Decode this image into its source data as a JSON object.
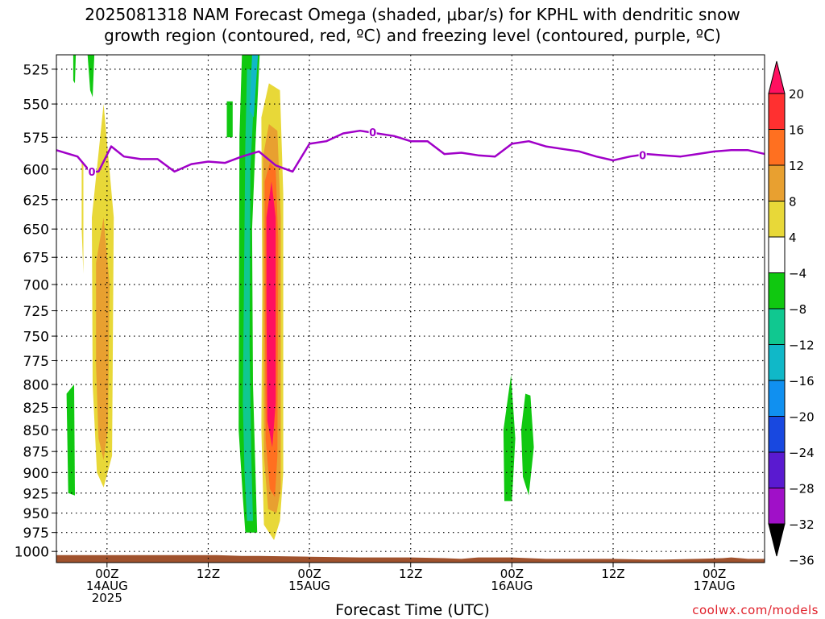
{
  "header": {
    "title_line1": "2025081318 NAM Forecast Omega (shaded, μbar/s) for KPHL with dendritic snow",
    "title_line2": "growth region (contoured, red, ºC) and freezing level (contoured, purple, ºC)"
  },
  "footer": {
    "xlabel": "Forecast Time (UTC)",
    "credit": "coolwx.com/models"
  },
  "colors": {
    "freezing_line": "#a000c8",
    "terrain": "#a0522d",
    "grid": "#000000"
  },
  "chart_data": {
    "type": "heatmap",
    "title": "2025081318 NAM Forecast Omega (shaded, μbar/s) for KPHL with dendritic snow growth region (contoured, red, ºC) and freezing level (contoured, purple, ºC)",
    "xlabel": "Forecast Time (UTC)",
    "ylabel": "",
    "y_scale": "pressure (hPa), increasing downward",
    "ylim": [
      1015,
      515
    ],
    "y_ticks": [
      525,
      550,
      575,
      600,
      625,
      650,
      675,
      700,
      725,
      750,
      775,
      800,
      825,
      850,
      875,
      900,
      925,
      950,
      975,
      1000
    ],
    "xlim": [
      "2025-08-13 18Z",
      "2025-08-17 09Z"
    ],
    "x_ticks": [
      {
        "time": "2025-08-14 00Z",
        "l1": "00Z",
        "l2": "14AUG",
        "l3": "2025"
      },
      {
        "time": "2025-08-14 12Z",
        "l1": "12Z",
        "l2": "",
        "l3": ""
      },
      {
        "time": "2025-08-15 00Z",
        "l1": "00Z",
        "l2": "15AUG",
        "l3": ""
      },
      {
        "time": "2025-08-15 12Z",
        "l1": "12Z",
        "l2": "",
        "l3": ""
      },
      {
        "time": "2025-08-16 00Z",
        "l1": "00Z",
        "l2": "16AUG",
        "l3": ""
      },
      {
        "time": "2025-08-16 12Z",
        "l1": "12Z",
        "l2": "",
        "l3": ""
      },
      {
        "time": "2025-08-17 00Z",
        "l1": "00Z",
        "l2": "17AUG",
        "l3": ""
      }
    ],
    "grid": true,
    "colorbar": {
      "levels": [
        "20",
        "16",
        "12",
        "8",
        "4",
        "−4",
        "−8",
        "−12",
        "−16",
        "−20",
        "−24",
        "−28",
        "−32",
        "−36"
      ],
      "colors": [
        "#ff1060",
        "#ff3030",
        "#ff7020",
        "#e8a030",
        "#e8d838",
        "#ffffff",
        "#10c810",
        "#10c890",
        "#10b8c8",
        "#1090f0",
        "#1848e0",
        "#5a1ad0",
        "#a010c8",
        "#a0a0a0",
        "#000000"
      ]
    },
    "freezing_level_0C": {
      "hours": [
        0,
        2.5,
        4,
        5,
        6.5,
        8,
        10,
        12,
        14,
        16,
        18,
        20,
        22,
        24,
        26,
        28,
        30,
        32,
        34,
        36,
        38,
        40,
        42,
        44,
        46,
        48,
        50,
        52,
        54,
        56,
        58,
        60,
        62,
        64,
        66,
        68,
        70,
        72,
        74,
        76,
        78,
        80,
        82,
        84,
        85
      ],
      "pressure": [
        585,
        590,
        602,
        602,
        582,
        590,
        592,
        592,
        602,
        596,
        594,
        595,
        590,
        586,
        597,
        602,
        580,
        578,
        572,
        570,
        572,
        574,
        578,
        578,
        588,
        587,
        589,
        590,
        580,
        578,
        582,
        584,
        586,
        590,
        593,
        590,
        588,
        589,
        590,
        588,
        586,
        585,
        585,
        588,
        588
      ],
      "label": "0"
    },
    "omega_regions": [
      {
        "color": "#10c810",
        "value_range": "-4 to -8",
        "polygon": [
          [
            1.2,
            810
          ],
          [
            2.1,
            800
          ],
          [
            2.2,
            928
          ],
          [
            1.4,
            925
          ]
        ]
      },
      {
        "color": "#e8d838",
        "value_range": "4 to 8",
        "polygon": [
          [
            4.2,
            640
          ],
          [
            5.6,
            550
          ],
          [
            6.8,
            640
          ],
          [
            6.6,
            880
          ],
          [
            5.6,
            918
          ],
          [
            4.8,
            900
          ],
          [
            4.3,
            800
          ]
        ]
      },
      {
        "color": "#e8a030",
        "value_range": "8 to 12",
        "polygon": [
          [
            4.7,
            680
          ],
          [
            5.6,
            640
          ],
          [
            6.3,
            700
          ],
          [
            6.1,
            850
          ],
          [
            5.6,
            885
          ],
          [
            5.0,
            860
          ],
          [
            4.7,
            780
          ]
        ]
      },
      {
        "color": "#10c810",
        "value_range": "-4 to -8",
        "polygon": [
          [
            21.7,
            575
          ],
          [
            22.0,
            515
          ],
          [
            24.1,
            515
          ],
          [
            23.6,
            580
          ],
          [
            23.2,
            650
          ],
          [
            23.3,
            800
          ],
          [
            23.6,
            900
          ],
          [
            23.8,
            975
          ],
          [
            22.4,
            975
          ],
          [
            22.1,
            930
          ],
          [
            21.6,
            850
          ]
        ]
      },
      {
        "color": "#10c890",
        "value_range": "-8 to -12",
        "polygon": [
          [
            22.4,
            580
          ],
          [
            22.6,
            525
          ],
          [
            23.6,
            525
          ],
          [
            23.0,
            600
          ],
          [
            22.9,
            760
          ],
          [
            23.1,
            880
          ],
          [
            23.3,
            960
          ],
          [
            22.6,
            960
          ],
          [
            22.3,
            900
          ],
          [
            22.1,
            820
          ]
        ]
      },
      {
        "color": "#10b8c8",
        "value_range": "-12 to -16",
        "polygon": [
          [
            22.9,
            555
          ],
          [
            23.2,
            515
          ],
          [
            23.9,
            515
          ],
          [
            23.4,
            560
          ]
        ]
      },
      {
        "color": "#e8d838",
        "value_range": "4 to 8",
        "polygon": [
          [
            24.3,
            560
          ],
          [
            25.2,
            535
          ],
          [
            26.5,
            540
          ],
          [
            26.9,
            620
          ],
          [
            26.9,
            900
          ],
          [
            26.5,
            960
          ],
          [
            25.8,
            985
          ],
          [
            24.6,
            965
          ],
          [
            24.3,
            850
          ],
          [
            24.4,
            700
          ]
        ]
      },
      {
        "color": "#e8a030",
        "value_range": "8 to 12",
        "polygon": [
          [
            24.5,
            590
          ],
          [
            25.2,
            565
          ],
          [
            26.2,
            570
          ],
          [
            26.6,
            640
          ],
          [
            26.6,
            920
          ],
          [
            26.1,
            950
          ],
          [
            25.1,
            945
          ],
          [
            24.6,
            880
          ],
          [
            24.5,
            700
          ]
        ]
      },
      {
        "color": "#ff7020",
        "value_range": "12 to 16",
        "polygon": [
          [
            24.7,
            610
          ],
          [
            25.3,
            595
          ],
          [
            26.0,
            600
          ],
          [
            26.3,
            660
          ],
          [
            26.2,
            880
          ],
          [
            25.9,
            930
          ],
          [
            25.3,
            920
          ],
          [
            24.8,
            860
          ],
          [
            24.7,
            700
          ]
        ]
      },
      {
        "color": "#ff1060",
        "value_range": "20+",
        "polygon": [
          [
            24.9,
            640
          ],
          [
            25.5,
            610
          ],
          [
            26.0,
            640
          ],
          [
            26.0,
            820
          ],
          [
            25.6,
            870
          ],
          [
            25.0,
            840
          ],
          [
            24.9,
            720
          ]
        ]
      },
      {
        "color": "#10c810",
        "value_range": "-4 to -8",
        "polygon": [
          [
            53.0,
            850
          ],
          [
            53.9,
            790
          ],
          [
            54.4,
            860
          ],
          [
            54.0,
            935
          ],
          [
            53.1,
            935
          ]
        ]
      },
      {
        "color": "#10c810",
        "value_range": "-4 to -8",
        "polygon": [
          [
            55.1,
            850
          ],
          [
            55.6,
            810
          ],
          [
            56.2,
            812
          ],
          [
            56.6,
            870
          ],
          [
            56.0,
            928
          ],
          [
            55.3,
            905
          ]
        ]
      },
      {
        "color": "#10c810",
        "value_range": "-4 to -8",
        "polygon": [
          [
            20.2,
            548
          ],
          [
            20.9,
            548
          ],
          [
            20.9,
            575
          ],
          [
            20.2,
            575
          ]
        ]
      },
      {
        "color": "#10c810",
        "value_range": "-4 to -8",
        "polygon": [
          [
            2.0,
            515
          ],
          [
            2.3,
            515
          ],
          [
            2.2,
            535
          ],
          [
            2.0,
            533
          ]
        ]
      },
      {
        "color": "#10c810",
        "value_range": "-4 to -8",
        "polygon": [
          [
            3.7,
            515
          ],
          [
            4.5,
            515
          ],
          [
            4.3,
            545
          ],
          [
            4.0,
            540
          ]
        ]
      },
      {
        "color": "#e8d838",
        "value_range": "4 to 8",
        "polygon": [
          [
            3.0,
            595
          ],
          [
            3.2,
            595
          ],
          [
            3.2,
            690
          ],
          [
            3.0,
            650
          ]
        ]
      }
    ],
    "surface_pressure": {
      "hours": [
        0,
        12,
        19,
        22,
        24,
        30,
        36,
        42,
        46,
        48,
        50,
        54,
        58,
        60,
        66,
        70,
        72,
        76,
        79,
        80,
        82,
        84,
        85
      ],
      "pressure": [
        1005,
        1005,
        1005,
        1006,
        1006,
        1007,
        1008,
        1008,
        1009,
        1010,
        1008,
        1008,
        1010,
        1010,
        1010,
        1011,
        1011,
        1010,
        1009,
        1008,
        1010,
        1010,
        1010
      ]
    }
  }
}
